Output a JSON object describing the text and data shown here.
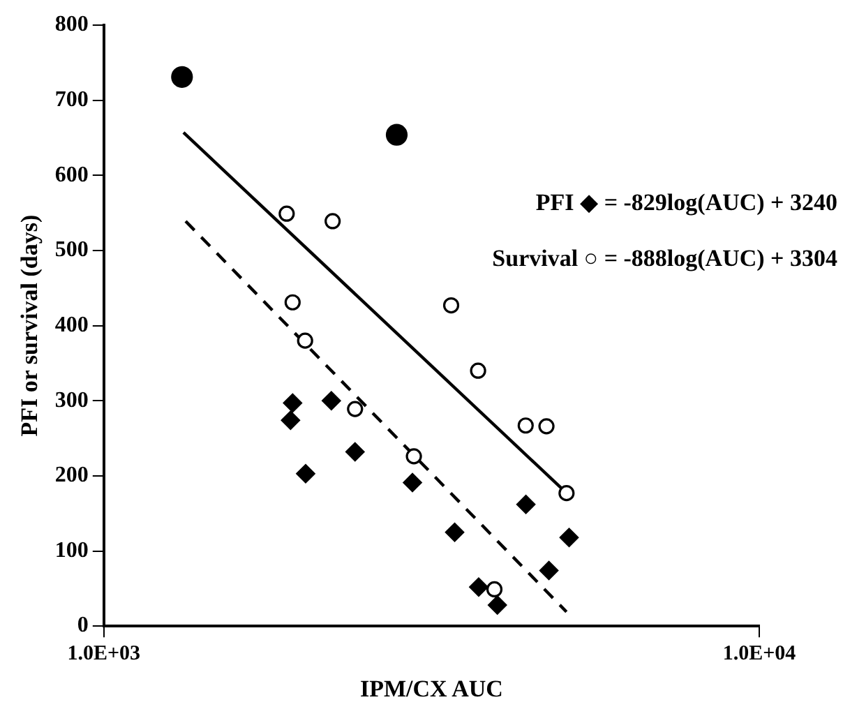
{
  "chart_data": {
    "type": "scatter",
    "xlabel": "IPM/CX AUC",
    "ylabel": "PFI or survival (days)",
    "log": "x",
    "xlim": [
      1000,
      10000
    ],
    "xticks": [
      {
        "value": 1000,
        "label": "1.0E+03"
      },
      {
        "value": 10000,
        "label": "1.0E+04"
      }
    ],
    "ylim": [
      0,
      800
    ],
    "yticks": [
      0,
      100,
      200,
      300,
      400,
      500,
      600,
      700,
      800
    ],
    "grid": false,
    "legend": false,
    "annotations": [
      "PFI ◆ = -829log(AUC) + 3240",
      "Survival ○ = -888log(AUC) + 3304"
    ],
    "series": [
      {
        "type": "scatter",
        "marker": "circle",
        "color": "#000000",
        "x": [
          1316,
          2798
        ],
        "values": [
          731,
          654
        ]
      },
      {
        "type": "scatter",
        "marker": "circle",
        "color": "#ffffff",
        "x": [
          1901,
          2234,
          1941,
          2028,
          2417,
          3388,
          3724,
          4402,
          4735,
          2972,
          5081,
          3944
        ],
        "values": [
          549,
          539,
          431,
          380,
          289,
          427,
          340,
          267,
          266,
          226,
          177,
          49
        ]
      },
      {
        "type": "scatter",
        "marker": "diamond",
        "color": "#000000",
        "x": [
          1941,
          1927,
          2224,
          2032,
          2417,
          2957,
          3430,
          4405,
          5127,
          4776,
          3732,
          3985
        ],
        "values": [
          297,
          274,
          300,
          203,
          232,
          191,
          125,
          162,
          118,
          74,
          52,
          28
        ]
      },
      {
        "type": "line",
        "line_style": "solid",
        "marker": "none",
        "color": "#000000",
        "x": [
          1323,
          5070
        ],
        "values": [
          657,
          178
        ]
      },
      {
        "type": "line",
        "line_style": "dashed",
        "marker": "none",
        "color": "#000000",
        "x": [
          1333,
          5080
        ],
        "values": [
          539,
          19
        ]
      }
    ]
  }
}
